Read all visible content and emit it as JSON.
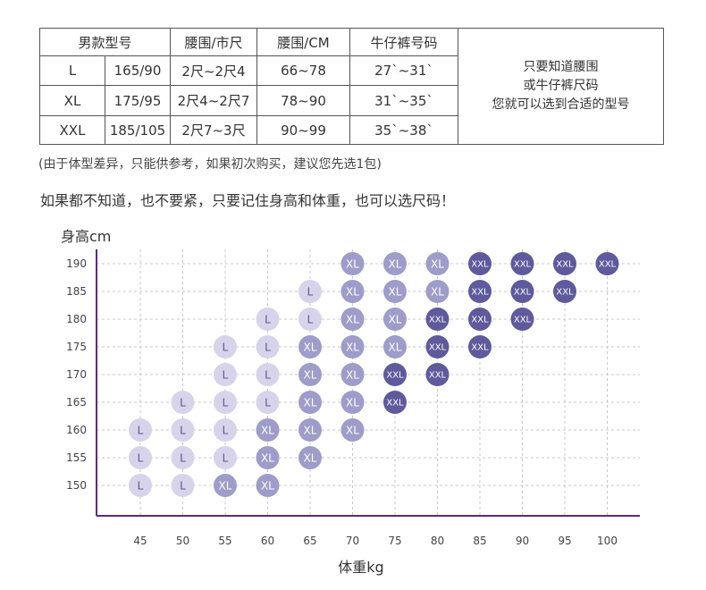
{
  "size_table": {
    "headers": [
      "男款型号",
      "腰围/市尺",
      "腰围/CM",
      "牛仔裤号码"
    ],
    "rows": [
      {
        "size": "L",
        "height_chest": "165/90",
        "waist_chi": "2尺~2尺4",
        "waist_cm": "66~78",
        "jeans": "27`~31`"
      },
      {
        "size": "XL",
        "height_chest": "175/95",
        "waist_chi": "2尺4~2尺7",
        "waist_cm": "78~90",
        "jeans": "31`~35`"
      },
      {
        "size": "XXL",
        "height_chest": "185/105",
        "waist_chi": "2尺7~3尺",
        "waist_cm": "90~99",
        "jeans": "35`~38`"
      }
    ],
    "note_lines": [
      "只要知道腰围",
      "或牛仔裤尺码",
      "您就可以选到合适的型号"
    ]
  },
  "footnote": "(由于体型差异，只能供参考，如果初次购买，建议您先选1包)",
  "headline": "如果都不知道，也不要紧，只要记住身高和体重，也可以选尺码！",
  "colors": {
    "L": "#d6d3eb",
    "XL": "#9e9cc9",
    "XXL": "#5e5a9c",
    "axis": "#5b2a86",
    "grid": "#c8c8c8"
  },
  "chart_data": {
    "type": "scatter",
    "xlabel": "体重kg",
    "ylabel": "身高cm",
    "x_ticks": [
      45,
      50,
      55,
      60,
      65,
      70,
      75,
      80,
      85,
      90,
      95,
      100
    ],
    "y_ticks": [
      150,
      155,
      160,
      165,
      170,
      175,
      180,
      185,
      190
    ],
    "xlim": [
      40,
      103
    ],
    "ylim": [
      145,
      192
    ],
    "grid": true,
    "rows": [
      {
        "height": 190,
        "points": [
          [
            70,
            "XL"
          ],
          [
            75,
            "XL"
          ],
          [
            80,
            "XL"
          ],
          [
            85,
            "XXL"
          ],
          [
            90,
            "XXL"
          ],
          [
            95,
            "XXL"
          ],
          [
            100,
            "XXL"
          ]
        ]
      },
      {
        "height": 185,
        "points": [
          [
            65,
            "L"
          ],
          [
            70,
            "XL"
          ],
          [
            75,
            "XL"
          ],
          [
            80,
            "XL"
          ],
          [
            85,
            "XXL"
          ],
          [
            90,
            "XXL"
          ],
          [
            95,
            "XXL"
          ]
        ]
      },
      {
        "height": 180,
        "points": [
          [
            60,
            "L"
          ],
          [
            65,
            "L"
          ],
          [
            70,
            "XL"
          ],
          [
            75,
            "XL"
          ],
          [
            80,
            "XXL"
          ],
          [
            85,
            "XXL"
          ],
          [
            90,
            "XXL"
          ]
        ]
      },
      {
        "height": 175,
        "points": [
          [
            55,
            "L"
          ],
          [
            60,
            "L"
          ],
          [
            65,
            "XL"
          ],
          [
            70,
            "XL"
          ],
          [
            75,
            "XL"
          ],
          [
            80,
            "XXL"
          ],
          [
            85,
            "XXL"
          ]
        ]
      },
      {
        "height": 170,
        "points": [
          [
            55,
            "L"
          ],
          [
            60,
            "L"
          ],
          [
            65,
            "XL"
          ],
          [
            70,
            "XL"
          ],
          [
            75,
            "XXL"
          ],
          [
            80,
            "XXL"
          ]
        ]
      },
      {
        "height": 165,
        "points": [
          [
            50,
            "L"
          ],
          [
            55,
            "L"
          ],
          [
            60,
            "L"
          ],
          [
            65,
            "XL"
          ],
          [
            70,
            "XL"
          ],
          [
            75,
            "XXL"
          ]
        ]
      },
      {
        "height": 160,
        "points": [
          [
            45,
            "L"
          ],
          [
            50,
            "L"
          ],
          [
            55,
            "L"
          ],
          [
            60,
            "XL"
          ],
          [
            65,
            "XL"
          ],
          [
            70,
            "XL"
          ]
        ]
      },
      {
        "height": 155,
        "points": [
          [
            45,
            "L"
          ],
          [
            50,
            "L"
          ],
          [
            55,
            "L"
          ],
          [
            60,
            "XL"
          ],
          [
            65,
            "XL"
          ]
        ]
      },
      {
        "height": 150,
        "points": [
          [
            45,
            "L"
          ],
          [
            50,
            "L"
          ],
          [
            55,
            "XL"
          ],
          [
            60,
            "XL"
          ]
        ]
      }
    ]
  }
}
